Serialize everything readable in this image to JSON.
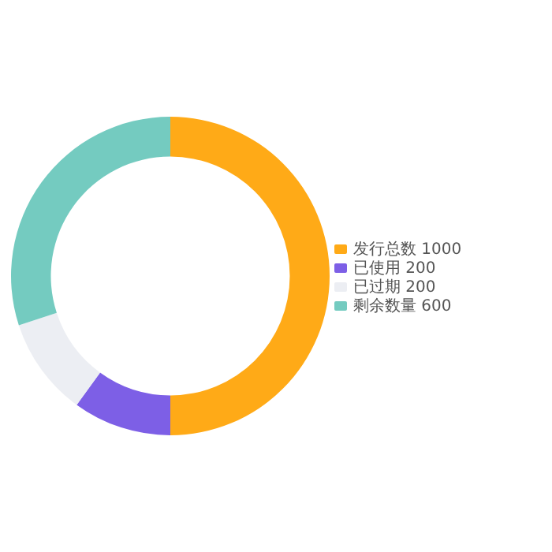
{
  "chart_data": {
    "type": "donut",
    "categories": [
      "发行总数",
      "已使用",
      "已过期",
      "剩余数量"
    ],
    "values": [
      1000,
      200,
      200,
      600
    ],
    "value_labels": [
      "1000",
      "200",
      "200",
      "600"
    ],
    "colors": [
      "#ffaa17",
      "#7d5fe6",
      "#eceef3",
      "#74cbc0"
    ],
    "legend": "right"
  }
}
